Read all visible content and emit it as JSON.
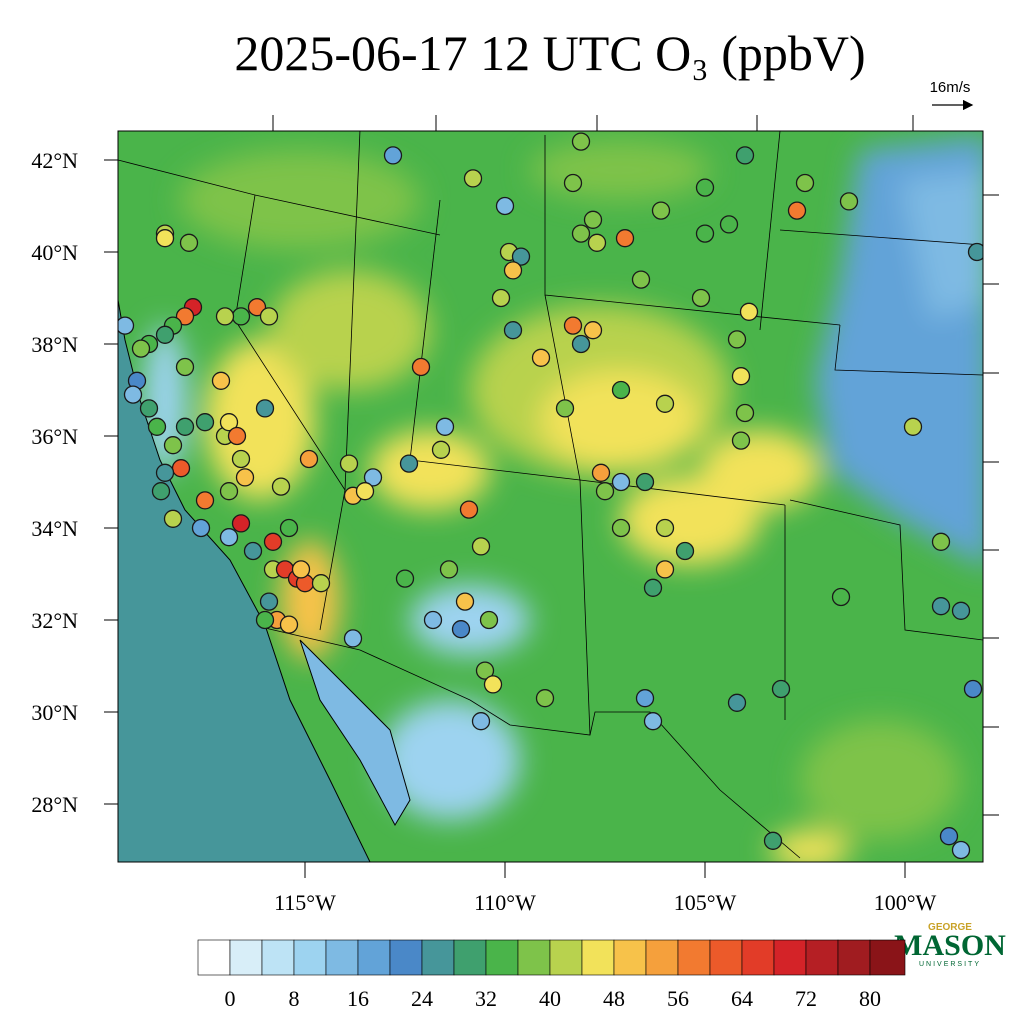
{
  "title": "2025-06-17 12 UTC O₃ (ppbV)",
  "wind_reference": "16m/s",
  "lat_ticks": [
    {
      "value": 42,
      "label": "42°N"
    },
    {
      "value": 40,
      "label": "40°N"
    },
    {
      "value": 38,
      "label": "38°N"
    },
    {
      "value": 36,
      "label": "36°N"
    },
    {
      "value": 34,
      "label": "34°N"
    },
    {
      "value": 32,
      "label": "32°N"
    },
    {
      "value": 30,
      "label": "30°N"
    },
    {
      "value": 28,
      "label": "28°N"
    }
  ],
  "lon_ticks": [
    {
      "value": -115,
      "label": "115°W"
    },
    {
      "value": -110,
      "label": "110°W"
    },
    {
      "value": -105,
      "label": "105°W"
    },
    {
      "value": -100,
      "label": "100°W"
    }
  ],
  "colorbar": {
    "levels": [
      0,
      4,
      8,
      12,
      16,
      20,
      24,
      28,
      32,
      36,
      40,
      44,
      48,
      52,
      56,
      60,
      64,
      68,
      72,
      76,
      80
    ],
    "ticks": [
      0,
      8,
      16,
      24,
      32,
      40,
      48,
      56,
      64,
      72,
      80
    ],
    "colors": [
      "#ffffff",
      "#d8eef8",
      "#bde3f5",
      "#9dd3f0",
      "#7ebae3",
      "#62a3d8",
      "#4a88c8",
      "#46969a",
      "#3fa06e",
      "#4ab44a",
      "#7ec34a",
      "#b8d24e",
      "#f2e25a",
      "#f7c24a",
      "#f5a03c",
      "#f27a30",
      "#ec5a2a",
      "#e23c28",
      "#d42328",
      "#b51f24",
      "#a01c20",
      "#8a1418"
    ]
  },
  "logo": {
    "top": "GEORGE",
    "main": "MASON",
    "bottom": "UNIVERSITY"
  },
  "stations": [
    {
      "lon": -112.8,
      "lat": 42.1,
      "value": 16
    },
    {
      "lon": -110.8,
      "lat": 41.6,
      "value": 42
    },
    {
      "lon": -110.0,
      "lat": 41.0,
      "value": 14
    },
    {
      "lon": -108.3,
      "lat": 41.5,
      "value": 36
    },
    {
      "lon": -108.1,
      "lat": 42.4,
      "value": 38
    },
    {
      "lon": -108.1,
      "lat": 40.4,
      "value": 36
    },
    {
      "lon": -107.8,
      "lat": 40.7,
      "value": 38
    },
    {
      "lon": -107.7,
      "lat": 40.2,
      "value": 40
    },
    {
      "lon": -107.0,
      "lat": 40.3,
      "value": 56
    },
    {
      "lon": -106.6,
      "lat": 39.4,
      "value": 36
    },
    {
      "lon": -106.1,
      "lat": 40.9,
      "value": 36
    },
    {
      "lon": -105.0,
      "lat": 41.4,
      "value": 34
    },
    {
      "lon": -104.0,
      "lat": 42.1,
      "value": 30
    },
    {
      "lon": -104.4,
      "lat": 40.6,
      "value": 34
    },
    {
      "lon": -105.0,
      "lat": 40.4,
      "value": 34
    },
    {
      "lon": -102.5,
      "lat": 41.5,
      "value": 38
    },
    {
      "lon": -102.7,
      "lat": 40.9,
      "value": 56
    },
    {
      "lon": -101.4,
      "lat": 41.1,
      "value": 36
    },
    {
      "lon": -98.2,
      "lat": 40.0,
      "value": 24
    },
    {
      "lon": -109.9,
      "lat": 40.0,
      "value": 40
    },
    {
      "lon": -109.6,
      "lat": 39.9,
      "value": 24
    },
    {
      "lon": -109.8,
      "lat": 39.6,
      "value": 48
    },
    {
      "lon": -110.1,
      "lat": 39.0,
      "value": 42
    },
    {
      "lon": -109.8,
      "lat": 38.3,
      "value": 24
    },
    {
      "lon": -109.1,
      "lat": 37.7,
      "value": 48
    },
    {
      "lon": -108.3,
      "lat": 38.4,
      "value": 56
    },
    {
      "lon": -107.8,
      "lat": 38.3,
      "value": 48
    },
    {
      "lon": -108.1,
      "lat": 38.0,
      "value": 26
    },
    {
      "lon": -108.5,
      "lat": 36.6,
      "value": 36
    },
    {
      "lon": -105.1,
      "lat": 39.0,
      "value": 36
    },
    {
      "lon": -103.9,
      "lat": 38.7,
      "value": 44
    },
    {
      "lon": -104.2,
      "lat": 38.1,
      "value": 38
    },
    {
      "lon": -104.1,
      "lat": 37.3,
      "value": 44
    },
    {
      "lon": -104.0,
      "lat": 36.5,
      "value": 38
    },
    {
      "lon": -104.1,
      "lat": 35.9,
      "value": 36
    },
    {
      "lon": -107.1,
      "lat": 37.0,
      "value": 34
    },
    {
      "lon": -106.0,
      "lat": 36.7,
      "value": 40
    },
    {
      "lon": -107.6,
      "lat": 35.2,
      "value": 52
    },
    {
      "lon": -107.5,
      "lat": 34.8,
      "value": 36
    },
    {
      "lon": -107.1,
      "lat": 35.0,
      "value": 14
    },
    {
      "lon": -106.5,
      "lat": 35.0,
      "value": 28
    },
    {
      "lon": -107.1,
      "lat": 34.0,
      "value": 36
    },
    {
      "lon": -106.0,
      "lat": 34.0,
      "value": 40
    },
    {
      "lon": -106.0,
      "lat": 33.1,
      "value": 50
    },
    {
      "lon": -106.3,
      "lat": 32.7,
      "value": 30
    },
    {
      "lon": -105.5,
      "lat": 33.5,
      "value": 28
    },
    {
      "lon": -99.8,
      "lat": 36.2,
      "value": 40
    },
    {
      "lon": -99.1,
      "lat": 33.7,
      "value": 36
    },
    {
      "lon": -99.1,
      "lat": 32.3,
      "value": 24
    },
    {
      "lon": -98.6,
      "lat": 32.2,
      "value": 24
    },
    {
      "lon": -101.6,
      "lat": 32.5,
      "value": 34
    },
    {
      "lon": -103.1,
      "lat": 30.5,
      "value": 30
    },
    {
      "lon": -104.2,
      "lat": 30.2,
      "value": 24
    },
    {
      "lon": -106.5,
      "lat": 30.3,
      "value": 16
    },
    {
      "lon": -106.3,
      "lat": 29.8,
      "value": 14
    },
    {
      "lon": -103.3,
      "lat": 27.2,
      "value": 30
    },
    {
      "lon": -98.9,
      "lat": 27.3,
      "value": 20
    },
    {
      "lon": -98.6,
      "lat": 27.0,
      "value": 12
    },
    {
      "lon": -98.3,
      "lat": 30.5,
      "value": 22
    },
    {
      "lon": -117.8,
      "lat": 38.8,
      "value": 70
    },
    {
      "lon": -118.0,
      "lat": 38.6,
      "value": 56
    },
    {
      "lon": -118.3,
      "lat": 38.4,
      "value": 34
    },
    {
      "lon": -118.5,
      "lat": 38.2,
      "value": 30
    },
    {
      "lon": -118.9,
      "lat": 38.0,
      "value": 34
    },
    {
      "lon": -119.1,
      "lat": 37.9,
      "value": 38
    },
    {
      "lon": -119.5,
      "lat": 38.4,
      "value": 12
    },
    {
      "lon": -119.2,
      "lat": 37.2,
      "value": 22
    },
    {
      "lon": -119.3,
      "lat": 36.9,
      "value": 12
    },
    {
      "lon": -118.9,
      "lat": 36.6,
      "value": 30
    },
    {
      "lon": -118.7,
      "lat": 36.2,
      "value": 34
    },
    {
      "lon": -118.3,
      "lat": 35.8,
      "value": 36
    },
    {
      "lon": -118.0,
      "lat": 36.2,
      "value": 30
    },
    {
      "lon": -117.5,
      "lat": 36.3,
      "value": 30
    },
    {
      "lon": -117.0,
      "lat": 36.0,
      "value": 40
    },
    {
      "lon": -116.9,
      "lat": 36.3,
      "value": 44
    },
    {
      "lon": -117.1,
      "lat": 37.2,
      "value": 48
    },
    {
      "lon": -116.7,
      "lat": 36.0,
      "value": 58
    },
    {
      "lon": -116.6,
      "lat": 35.5,
      "value": 40
    },
    {
      "lon": -116.0,
      "lat": 36.6,
      "value": 24
    },
    {
      "lon": -116.5,
      "lat": 35.1,
      "value": 48
    },
    {
      "lon": -116.9,
      "lat": 34.8,
      "value": 36
    },
    {
      "lon": -117.5,
      "lat": 34.6,
      "value": 58
    },
    {
      "lon": -118.1,
      "lat": 35.3,
      "value": 62
    },
    {
      "lon": -118.5,
      "lat": 35.2,
      "value": 26
    },
    {
      "lon": -118.6,
      "lat": 34.8,
      "value": 28
    },
    {
      "lon": -118.3,
      "lat": 34.2,
      "value": 40
    },
    {
      "lon": -117.6,
      "lat": 34.0,
      "value": 16
    },
    {
      "lon": -116.9,
      "lat": 33.8,
      "value": 14
    },
    {
      "lon": -116.6,
      "lat": 34.1,
      "value": 68
    },
    {
      "lon": -116.3,
      "lat": 33.5,
      "value": 26
    },
    {
      "lon": -115.8,
      "lat": 33.7,
      "value": 66
    },
    {
      "lon": -115.8,
      "lat": 33.1,
      "value": 40
    },
    {
      "lon": -115.5,
      "lat": 33.1,
      "value": 66
    },
    {
      "lon": -115.2,
      "lat": 32.9,
      "value": 64
    },
    {
      "lon": -115.0,
      "lat": 32.8,
      "value": 62
    },
    {
      "lon": -114.6,
      "lat": 32.8,
      "value": 40
    },
    {
      "lon": -115.1,
      "lat": 33.1,
      "value": 48
    },
    {
      "lon": -115.4,
      "lat": 34.0,
      "value": 34
    },
    {
      "lon": -115.9,
      "lat": 32.4,
      "value": 26
    },
    {
      "lon": -115.7,
      "lat": 32.0,
      "value": 52
    },
    {
      "lon": -116.0,
      "lat": 32.0,
      "value": 34
    },
    {
      "lon": -115.4,
      "lat": 31.9,
      "value": 50
    },
    {
      "lon": -113.8,
      "lat": 31.6,
      "value": 14
    },
    {
      "lon": -116.6,
      "lat": 38.6,
      "value": 34
    },
    {
      "lon": -116.2,
      "lat": 38.8,
      "value": 58
    },
    {
      "lon": -115.9,
      "lat": 38.6,
      "value": 40
    },
    {
      "lon": -117.0,
      "lat": 38.6,
      "value": 40
    },
    {
      "lon": -117.9,
      "lat": 40.2,
      "value": 36
    },
    {
      "lon": -118.5,
      "lat": 40.4,
      "value": 40
    },
    {
      "lon": -118.5,
      "lat": 40.3,
      "value": 46
    },
    {
      "lon": -118.0,
      "lat": 37.5,
      "value": 36
    },
    {
      "lon": -114.9,
      "lat": 35.5,
      "value": 54
    },
    {
      "lon": -115.6,
      "lat": 34.9,
      "value": 40
    },
    {
      "lon": -112.1,
      "lat": 37.5,
      "value": 58
    },
    {
      "lon": -112.4,
      "lat": 35.4,
      "value": 24
    },
    {
      "lon": -113.9,
      "lat": 35.4,
      "value": 42
    },
    {
      "lon": -113.3,
      "lat": 35.1,
      "value": 14
    },
    {
      "lon": -113.8,
      "lat": 34.7,
      "value": 50
    },
    {
      "lon": -113.5,
      "lat": 34.8,
      "value": 46
    },
    {
      "lon": -111.5,
      "lat": 36.2,
      "value": 14
    },
    {
      "lon": -111.6,
      "lat": 35.7,
      "value": 40
    },
    {
      "lon": -110.9,
      "lat": 34.4,
      "value": 58
    },
    {
      "lon": -110.6,
      "lat": 33.6,
      "value": 40
    },
    {
      "lon": -111.4,
      "lat": 33.1,
      "value": 36
    },
    {
      "lon": -112.5,
      "lat": 32.9,
      "value": 34
    },
    {
      "lon": -111.8,
      "lat": 32.0,
      "value": 14
    },
    {
      "lon": -111.0,
      "lat": 32.4,
      "value": 48
    },
    {
      "lon": -110.4,
      "lat": 32.0,
      "value": 36
    },
    {
      "lon": -111.1,
      "lat": 31.8,
      "value": 20
    },
    {
      "lon": -110.5,
      "lat": 30.9,
      "value": 36
    },
    {
      "lon": -110.3,
      "lat": 30.6,
      "value": 46
    },
    {
      "lon": -110.6,
      "lat": 29.8,
      "value": 14
    },
    {
      "lon": -109.0,
      "lat": 30.3,
      "value": 36
    }
  ]
}
